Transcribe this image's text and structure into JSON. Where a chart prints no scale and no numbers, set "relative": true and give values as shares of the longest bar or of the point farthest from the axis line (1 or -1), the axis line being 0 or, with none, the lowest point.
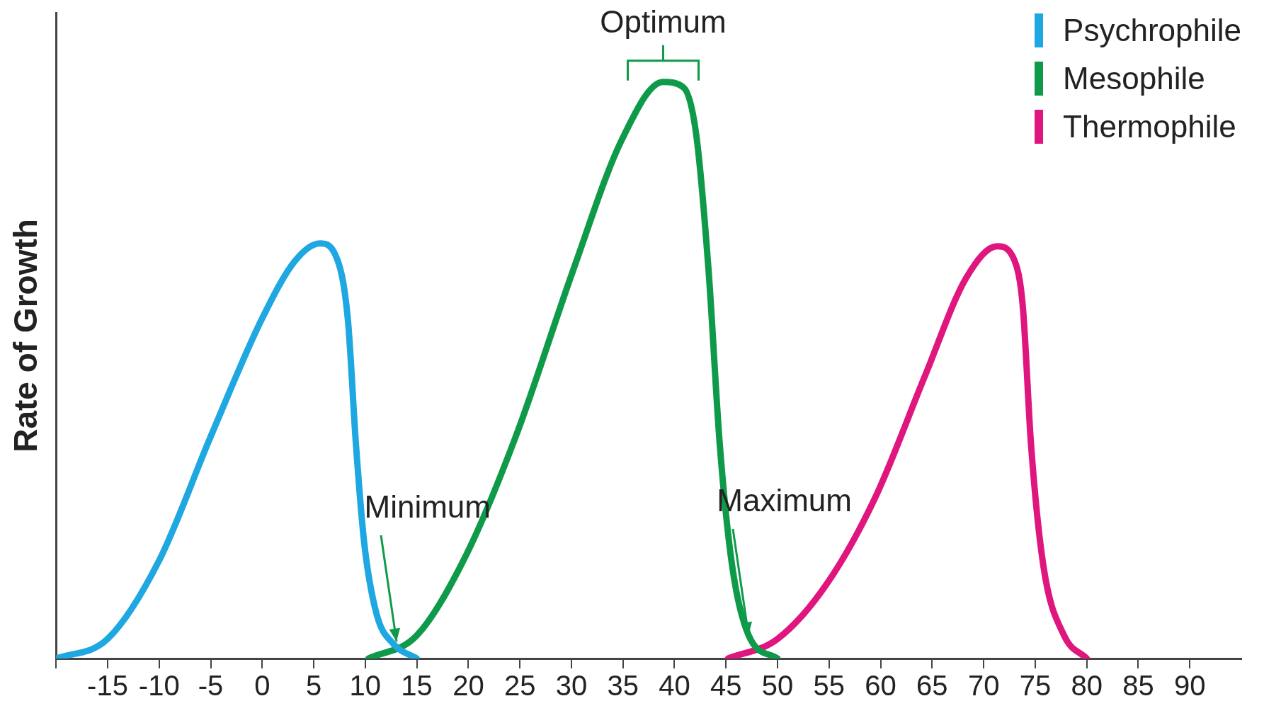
{
  "chart_data": {
    "type": "line",
    "ylabel": "Rate of Growth",
    "relative": true,
    "legend": "top right",
    "marker": "none",
    "grid": false,
    "xlim": [
      -20,
      95
    ],
    "xticks": [
      {
        "value": -20,
        "label": null
      },
      -15,
      -10,
      -5,
      0,
      5,
      10,
      15,
      20,
      25,
      30,
      35,
      40,
      45,
      50,
      55,
      60,
      65,
      70,
      75,
      80,
      85,
      90
    ],
    "series": [
      {
        "name": "Psychrophile",
        "color": "#1ea7e1",
        "x": [
          -20,
          -15,
          -10,
          -5,
          0,
          3.2,
          5.6,
          7.1,
          8.3,
          9.1,
          9.9,
          11.1,
          12.7,
          15
        ],
        "values": [
          0,
          0.034,
          0.17,
          0.385,
          0.59,
          0.69,
          0.72,
          0.7,
          0.59,
          0.37,
          0.2,
          0.077,
          0.026,
          0
        ]
      },
      {
        "name": "Mesophile",
        "color": "#0f9a4a",
        "x": [
          10.3,
          15,
          19.8,
          24.6,
          30.2,
          34.9,
          38.9,
          40.9,
          42.1,
          43.3,
          44.4,
          45.6,
          47.2,
          50
        ],
        "values": [
          0,
          0.04,
          0.18,
          0.385,
          0.675,
          0.9,
          1,
          0.99,
          0.91,
          0.675,
          0.37,
          0.16,
          0.04,
          0
        ]
      },
      {
        "name": "Thermophile",
        "color": "#e0167f",
        "x": [
          45.2,
          50,
          54.8,
          59.5,
          64.3,
          68.3,
          71.3,
          73,
          73.8,
          74.6,
          75.8,
          77.8,
          80
        ],
        "values": [
          0,
          0.034,
          0.13,
          0.28,
          0.49,
          0.66,
          0.715,
          0.69,
          0.61,
          0.37,
          0.16,
          0.04,
          0
        ]
      }
    ],
    "annotations": [
      {
        "text": "Optimum",
        "x": 38.9,
        "y": 1
      },
      {
        "text": "Minimum",
        "x": 13,
        "y": 0.03
      },
      {
        "text": "Maximum",
        "x": 47.2,
        "y": 0.04
      }
    ]
  }
}
